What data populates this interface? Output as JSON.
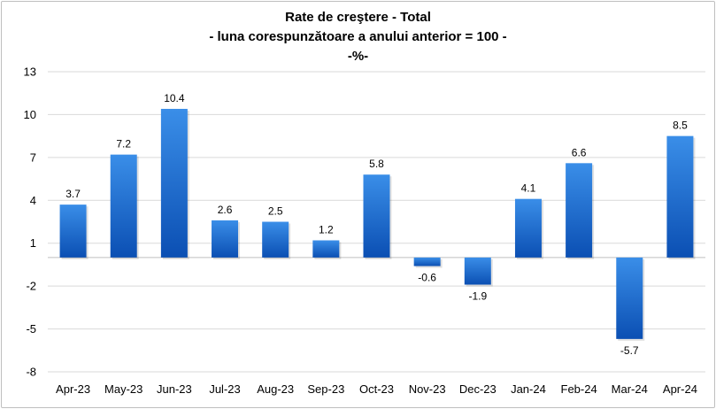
{
  "chart_data": {
    "type": "bar",
    "title": "Rate de creştere - Total",
    "subtitle": "- luna corespunzătoare a anului anterior = 100 -",
    "unit_label": "-%-",
    "xlabel": "",
    "ylabel": "",
    "categories": [
      "Apr-23",
      "May-23",
      "Jun-23",
      "Jul-23",
      "Aug-23",
      "Sep-23",
      "Oct-23",
      "Nov-23",
      "Dec-23",
      "Jan-24",
      "Feb-24",
      "Mar-24",
      "Apr-24"
    ],
    "values": [
      3.7,
      7.2,
      10.4,
      2.6,
      2.5,
      1.2,
      5.8,
      -0.6,
      -1.9,
      4.1,
      6.6,
      -5.7,
      8.5
    ],
    "data_labels": [
      "3.7",
      "7.2",
      "10.4",
      "2.6",
      "2.5",
      "1.2",
      "5.8",
      "-0.6",
      "-1.9",
      "4.1",
      "6.6",
      "-5.7",
      "8.5"
    ],
    "yticks": [
      13,
      10,
      7,
      4,
      1,
      -2,
      -5,
      -8
    ],
    "ytick_labels": [
      "13",
      "10",
      "7",
      "4",
      "1",
      "-2",
      "-5",
      "-8"
    ],
    "ylim": [
      -8,
      13
    ],
    "grid": true,
    "legend": "none",
    "colors": {
      "bar_light": "#3a8ee8",
      "bar_dark": "#0b4fb3",
      "grid": "#d9d9d9",
      "baseline": "#bfbfbf"
    }
  }
}
